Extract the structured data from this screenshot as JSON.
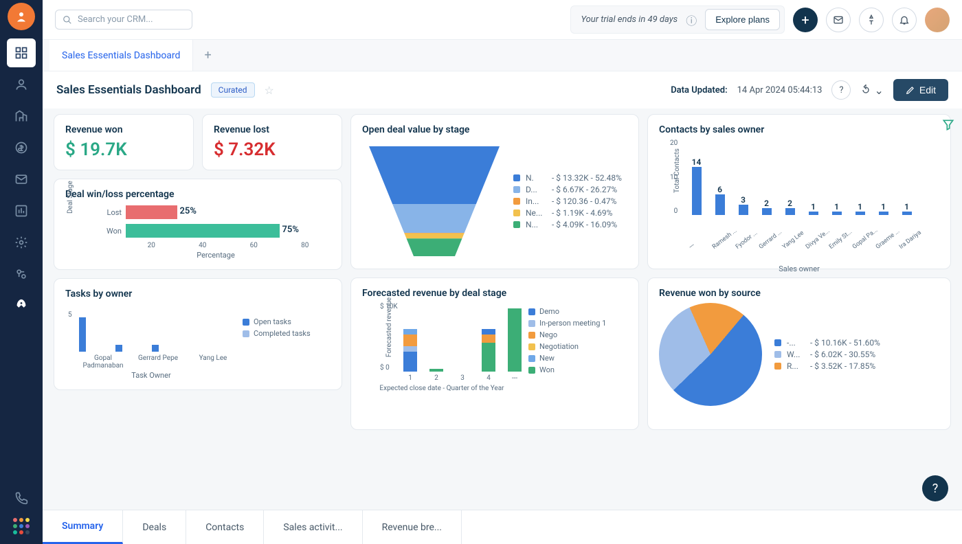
{
  "topbar": {
    "search_placeholder": "Search your CRM...",
    "trial_text": "Your trial ends in 49 days",
    "explore_label": "Explore plans"
  },
  "tabs": {
    "main_tab": "Sales Essentials Dashboard"
  },
  "titlebar": {
    "title": "Sales Essentials Dashboard",
    "curated": "Curated",
    "data_updated_label": "Data Updated:",
    "data_updated_time": "14 Apr 2024 05:44:13",
    "edit_label": "Edit"
  },
  "kpi": {
    "revenue_won_title": "Revenue won",
    "revenue_won_value": "$ 19.7K",
    "revenue_won_color": "#2aa886",
    "revenue_lost_title": "Revenue lost",
    "revenue_lost_value": "$ 7.32K",
    "revenue_lost_color": "#d72d30"
  },
  "winloss": {
    "title": "Deal win/loss percentage",
    "ylabel": "Deal Stage",
    "xlabel": "Percentage",
    "xticks": [
      "20",
      "40",
      "60",
      "80"
    ],
    "rows": [
      {
        "label": "Lost",
        "value": 25,
        "color": "#e86d6f"
      },
      {
        "label": "Won",
        "value": 75,
        "color": "#3cbe9a"
      }
    ]
  },
  "tasks": {
    "title": "Tasks by owner",
    "ytick": "5",
    "xlabel": "Task Owner",
    "owners": [
      {
        "name": "Gopal Padmanaban",
        "open": 5,
        "completed": 0
      },
      {
        "name": "Gerrard Pepe",
        "open": 1,
        "completed": 0
      },
      {
        "name": "Yang Lee",
        "open": 1,
        "completed": 0
      }
    ],
    "legend": [
      {
        "label": "Open tasks",
        "color": "#3b7dd8"
      },
      {
        "label": "Completed tasks",
        "color": "#9fbde8"
      }
    ],
    "ymax": 6
  },
  "funnel": {
    "title": "Open deal value by stage",
    "stages": [
      {
        "label": "N.",
        "value": "- $ 13.32K",
        "pct": "- 52.48%",
        "color": "#3b7dd8"
      },
      {
        "label": "D...",
        "value": "- $ 6.67K",
        "pct": "- 26.27%",
        "color": "#88b4e8"
      },
      {
        "label": "In...",
        "value": "- $ 120.36",
        "pct": "- 0.47%",
        "color": "#f29b3e"
      },
      {
        "label": "Ne...",
        "value": "- $ 1.19K",
        "pct": "- 4.69%",
        "color": "#f2c14e"
      },
      {
        "label": "N...",
        "value": "- $ 4.09K",
        "pct": "- 16.09%",
        "color": "#3cae76"
      }
    ]
  },
  "contacts": {
    "title": "Contacts by sales owner",
    "ylabel": "Total Contacts",
    "yticks": [
      "20",
      "10",
      "0"
    ],
    "xlabel": "Sales owner",
    "max": 20,
    "color": "#3b7dd8",
    "data": [
      {
        "name": "---",
        "value": 14
      },
      {
        "name": "Ramesh ...",
        "value": 6
      },
      {
        "name": "Fyodor ...",
        "value": 3
      },
      {
        "name": "Gerrard ...",
        "value": 2
      },
      {
        "name": "Yang Lee",
        "value": 2
      },
      {
        "name": "Divya Ve...",
        "value": 1
      },
      {
        "name": "Emily St...",
        "value": 1
      },
      {
        "name": "Gopal Pa...",
        "value": 1
      },
      {
        "name": "Graeme ...",
        "value": 1
      },
      {
        "name": "Ira Dariya",
        "value": 1
      }
    ]
  },
  "forecast": {
    "title": "Forecasted revenue by deal stage",
    "ylabel": "Forecasted revenue",
    "yticks": [
      "$ 10K",
      "$ 0"
    ],
    "xlabel": "Expected close date - Quarter of the Year",
    "max": 12,
    "legend": [
      {
        "label": "Demo",
        "color": "#3b7dd8"
      },
      {
        "label": "In-person meeting 1",
        "color": "#9fbde8"
      },
      {
        "label": "Nego",
        "color": "#f29b3e"
      },
      {
        "label": "Negotiation",
        "color": "#f2c14e"
      },
      {
        "label": "New",
        "color": "#6fa8e8"
      },
      {
        "label": "Won",
        "color": "#3cae76"
      }
    ],
    "bars": [
      {
        "label": "1",
        "segments": [
          {
            "color": "#3b7dd8",
            "v": 3.5
          },
          {
            "color": "#9fbde8",
            "v": 1
          },
          {
            "color": "#f29b3e",
            "v": 2
          },
          {
            "color": "#6fa8e8",
            "v": 1
          }
        ]
      },
      {
        "label": "2",
        "segments": [
          {
            "color": "#3cae76",
            "v": 0.5
          }
        ]
      },
      {
        "label": "3",
        "segments": []
      },
      {
        "label": "4",
        "segments": [
          {
            "color": "#3cae76",
            "v": 5
          },
          {
            "color": "#f29b3e",
            "v": 1.5
          },
          {
            "color": "#3b7dd8",
            "v": 1
          }
        ]
      },
      {
        "label": "---",
        "segments": [
          {
            "color": "#3cae76",
            "v": 11
          }
        ]
      }
    ]
  },
  "pie": {
    "title": "Revenue won by source",
    "slices": [
      {
        "label": "-...",
        "value": "- $ 10.16K",
        "pct": "- 51.60%",
        "color": "#3b7dd8",
        "deg": 186
      },
      {
        "label": "W...",
        "value": "- $ 6.02K",
        "pct": "- 30.55%",
        "color": "#9fbde8",
        "deg": 110
      },
      {
        "label": "R...",
        "value": "- $ 3.52K",
        "pct": "- 17.85%",
        "color": "#f29b3e",
        "deg": 64
      }
    ]
  },
  "bottom_tabs": [
    "Summary",
    "Deals",
    "Contacts",
    "Sales activit...",
    "Revenue bre..."
  ],
  "rail_apps_colors": [
    "#e86d6f",
    "#f29b3e",
    "#f2d94e",
    "#3cae76",
    "#3b7dd8",
    "#9b59b6",
    "#1abc9c",
    "#e74c3c",
    "#34495e"
  ]
}
